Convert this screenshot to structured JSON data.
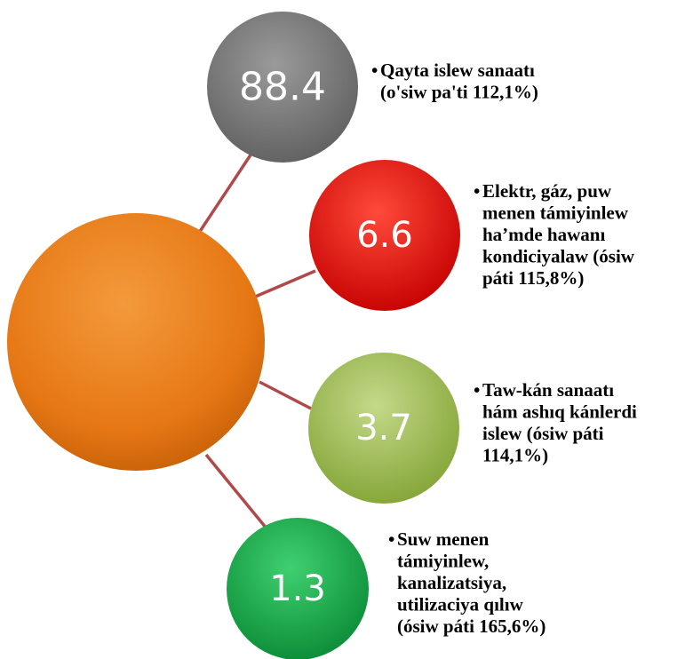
{
  "nodes": [
    {
      "value": "88.4",
      "lines": [
        "Qayta islew sanaatı",
        "(o'siw pa'ti 112,1%)"
      ]
    },
    {
      "value": "6.6",
      "lines": [
        "Elektr, gáz, puw",
        "menen támiyinlew",
        "ha’mde hawanı",
        "kondiciyalaw  (ósiw",
        "páti 115,8%)"
      ]
    },
    {
      "value": "3.7",
      "lines": [
        "Taw-kán sanaatı",
        "hám ashıq kánlerdi",
        "islew (ósiw páti",
        "114,1%)"
      ]
    },
    {
      "value": "1.3",
      "lines": [
        "Suw menen",
        "támiyinlew,",
        "kanalizatsiya,",
        "utilizaciya qılıw",
        "(ósiw páti 165,6%)"
      ]
    }
  ]
}
